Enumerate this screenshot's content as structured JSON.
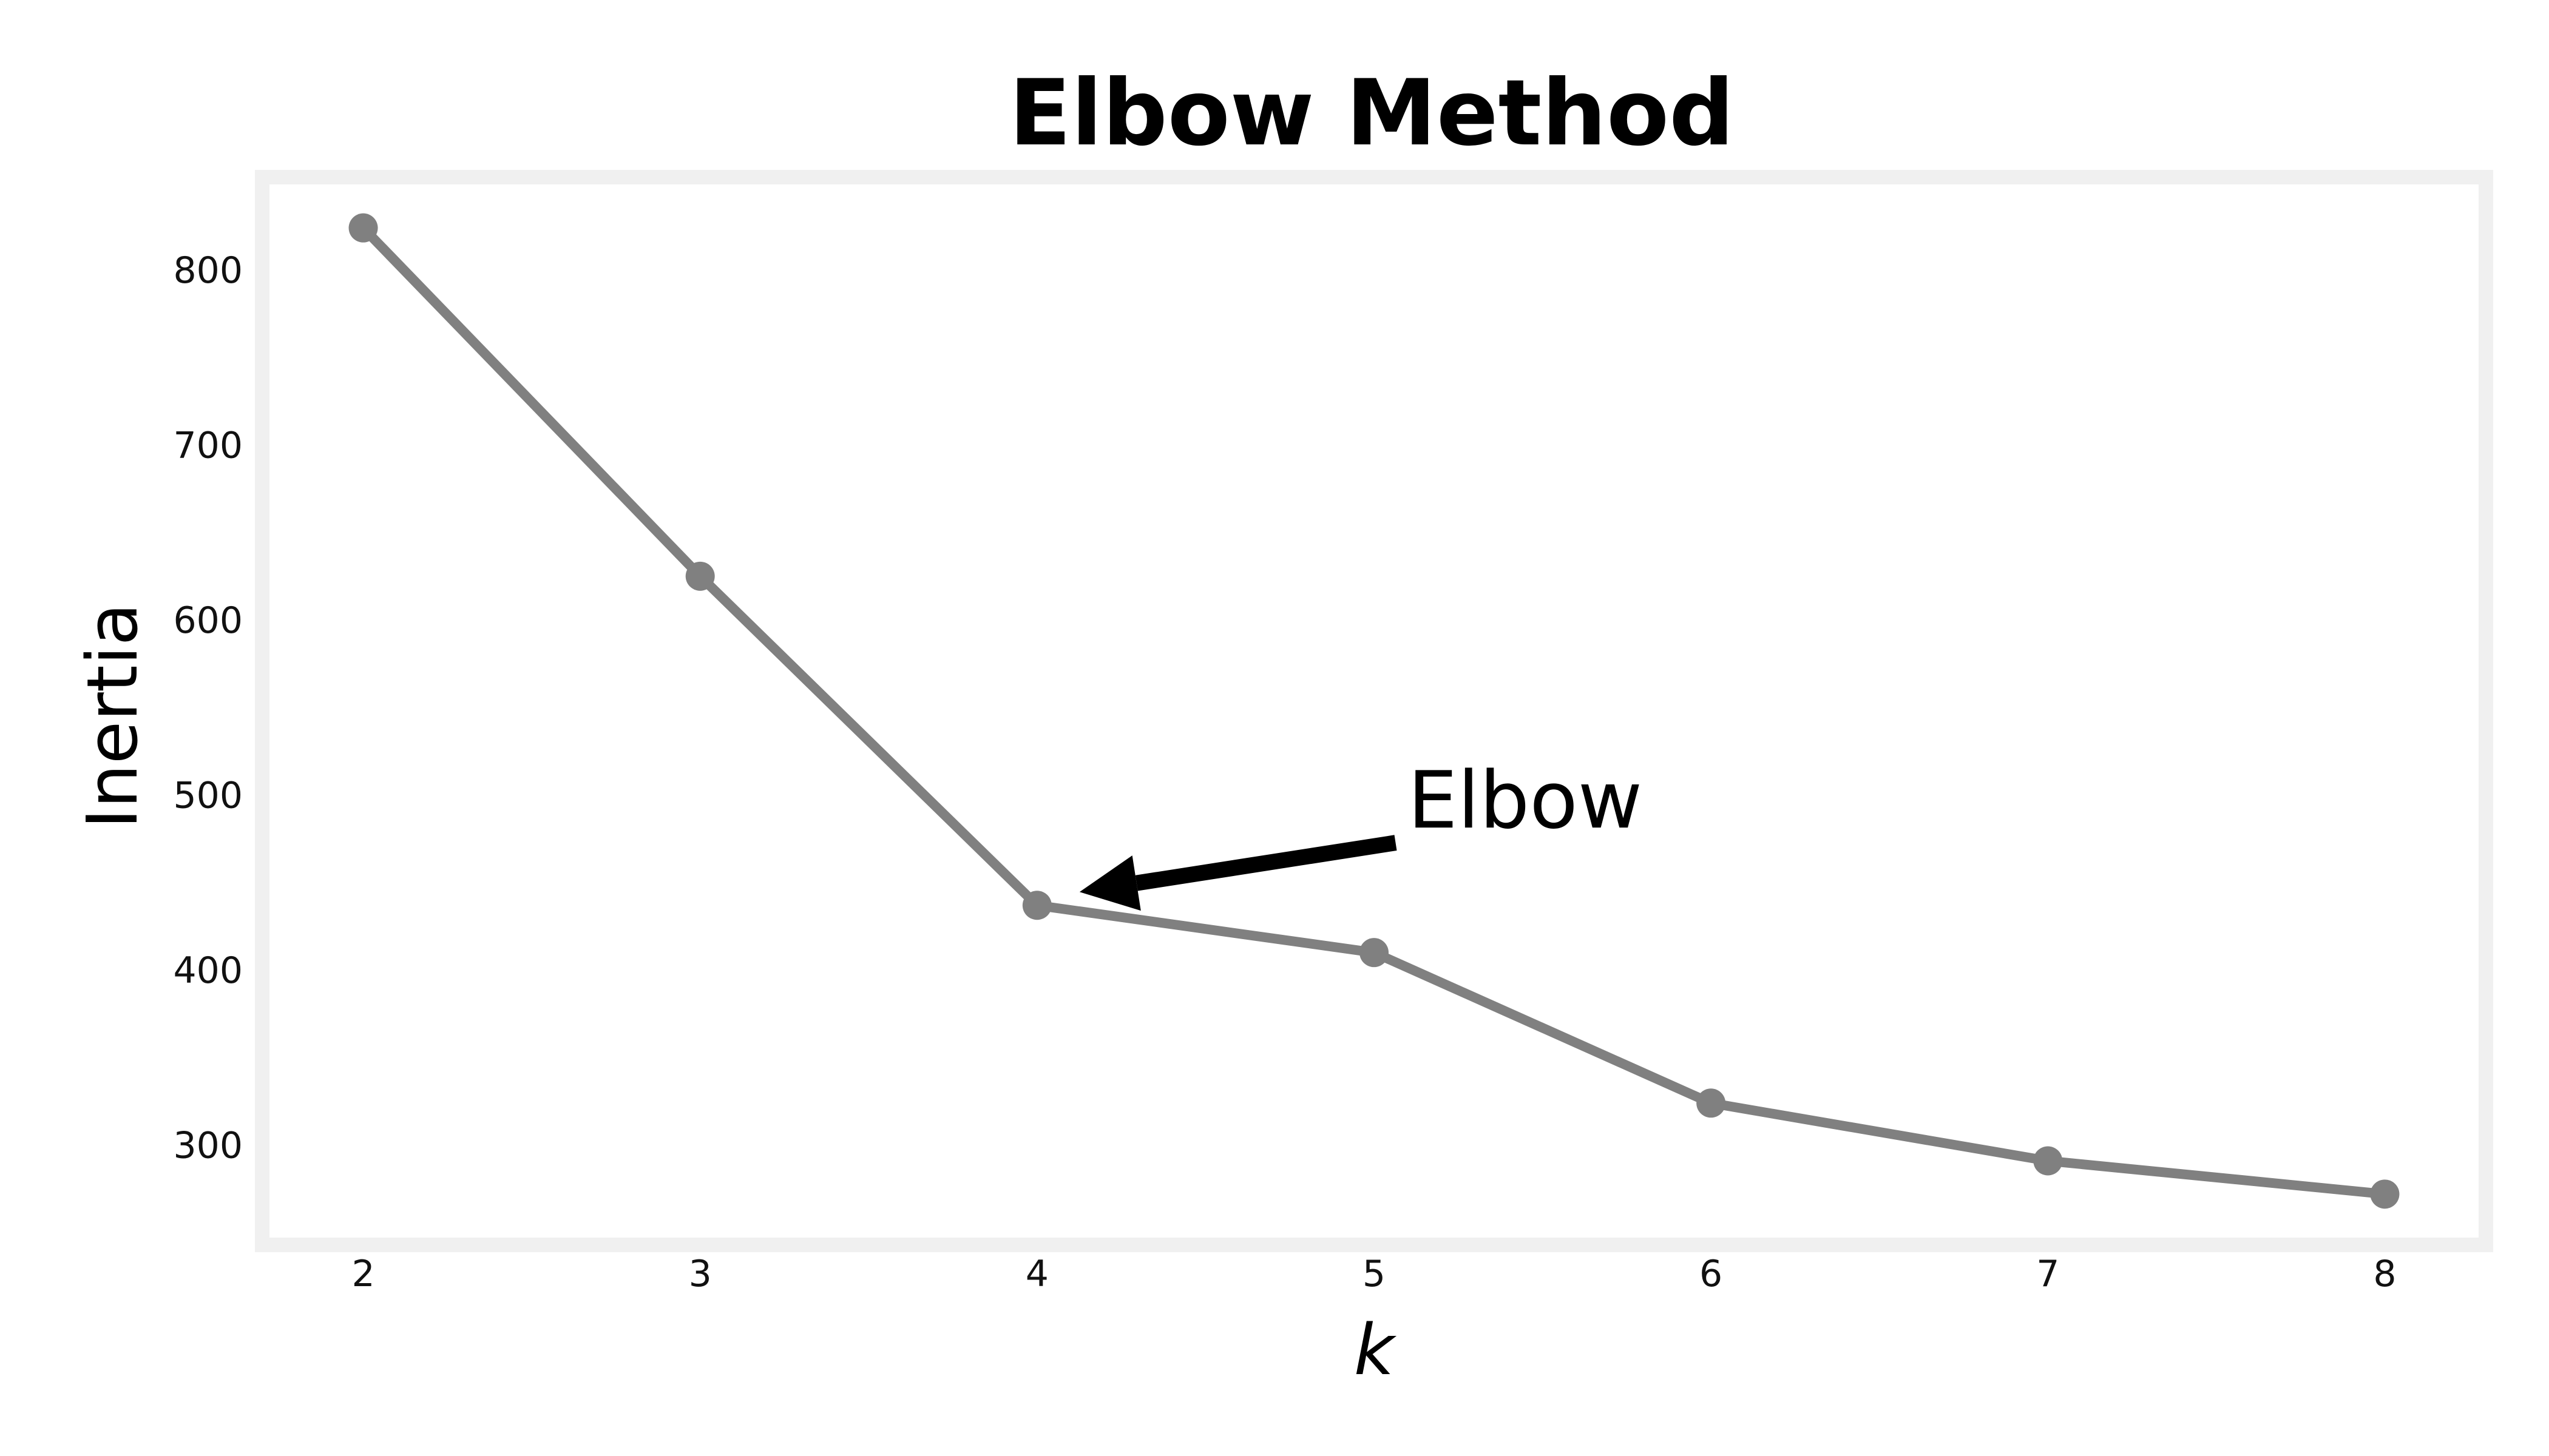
{
  "chart_data": {
    "type": "line",
    "title": "Elbow Method",
    "xlabel": "k",
    "ylabel": "Inertia",
    "x": [
      2,
      3,
      4,
      5,
      6,
      7,
      8
    ],
    "series": [
      {
        "values": [
          824,
          625,
          437,
          410,
          324,
          291,
          272
        ],
        "color": "#808080",
        "marker": "circle"
      }
    ],
    "xticks": [
      "2",
      "3",
      "4",
      "5",
      "6",
      "7",
      "8"
    ],
    "yticks": [
      "300",
      "400",
      "500",
      "600",
      "700",
      "800"
    ],
    "xlim": [
      1.7,
      8.3
    ],
    "ylim": [
      243,
      853
    ],
    "grid": false,
    "frame_color": "#f0f0f0",
    "annotation": {
      "text": "Elbow",
      "x": 4,
      "y": 437,
      "text_x": 5.1,
      "text_y": 497,
      "arrow_color": "#000000"
    }
  }
}
